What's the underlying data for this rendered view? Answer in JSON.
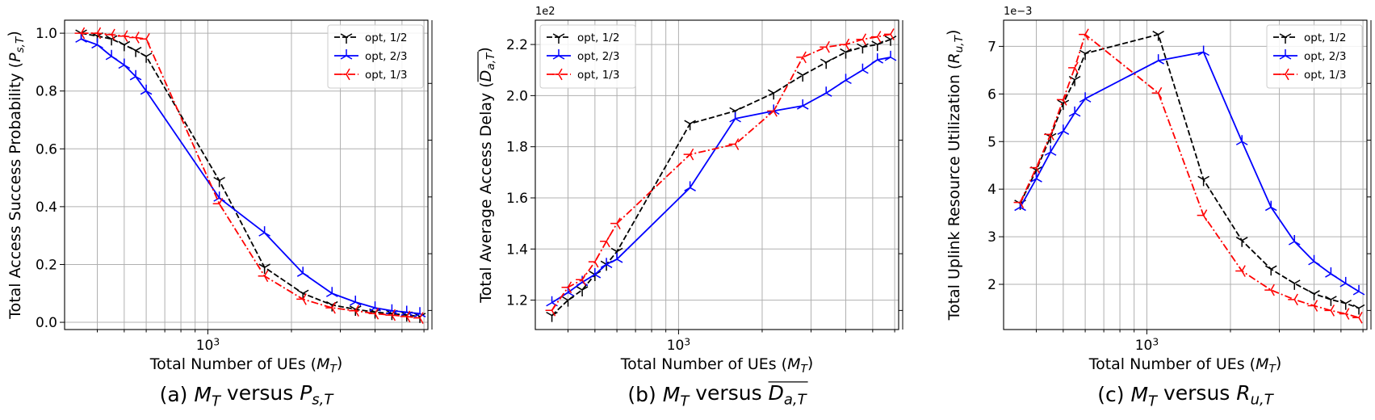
{
  "chart_data": [
    {
      "type": "line",
      "xlabel": "Total Number of UEs (M_T)",
      "ylabel": "Total Access Success Probability (P_{s,T})",
      "caption": "(a) M_T versus P_{s,T}",
      "offset_label": "",
      "xscale": "log",
      "xlim": [
        305,
        6200
      ],
      "xticks": [
        1000
      ],
      "xtick_labels": [
        "10^3"
      ],
      "ylim": [
        -0.025,
        1.045
      ],
      "yticks": [
        0.0,
        0.2,
        0.4,
        0.6,
        0.8,
        1.0
      ],
      "ytick_labels": [
        "0.0",
        "0.2",
        "0.4",
        "0.6",
        "0.8",
        "1.0"
      ],
      "grid": true,
      "legend_position": "upper right",
      "series": [
        {
          "name": "opt, 1/2",
          "color": "#000000",
          "dash": "dashed",
          "marker": "tri-down",
          "x": [
            350,
            400,
            450,
            500,
            550,
            600,
            1100,
            1600,
            2200,
            2800,
            3400,
            4000,
            4600,
            5200,
            5800
          ],
          "y": [
            1.0,
            0.99,
            0.98,
            0.96,
            0.94,
            0.92,
            0.49,
            0.19,
            0.1,
            0.06,
            0.045,
            0.035,
            0.03,
            0.025,
            0.02
          ]
        },
        {
          "name": "opt, 2/3",
          "color": "#0000ff",
          "dash": "solid",
          "marker": "tri-up",
          "x": [
            350,
            400,
            450,
            500,
            550,
            600,
            1100,
            1600,
            2200,
            2800,
            3400,
            4000,
            4600,
            5200,
            5800
          ],
          "y": [
            0.98,
            0.96,
            0.92,
            0.89,
            0.85,
            0.8,
            0.43,
            0.31,
            0.17,
            0.1,
            0.07,
            0.05,
            0.04,
            0.035,
            0.03
          ]
        },
        {
          "name": "opt, 1/3",
          "color": "#ff0000",
          "dash": "dashdot",
          "marker": "tri-left",
          "x": [
            350,
            400,
            450,
            500,
            550,
            600,
            1100,
            1600,
            2200,
            2800,
            3400,
            4000,
            4600,
            5200,
            5800
          ],
          "y": [
            1.0,
            1.0,
            0.995,
            0.99,
            0.985,
            0.98,
            0.41,
            0.16,
            0.08,
            0.05,
            0.04,
            0.03,
            0.025,
            0.02,
            0.015
          ]
        }
      ]
    },
    {
      "type": "line",
      "xlabel": "Total Number of UEs (M_T)",
      "ylabel": "Total Average Access Delay (D_{a,T})",
      "caption": "(b) M_T versus D_{a,T}",
      "offset_label": "1e2",
      "xscale": "log",
      "xlim": [
        305,
        6200
      ],
      "xticks": [
        1000
      ],
      "xtick_labels": [
        "10^3"
      ],
      "ylim": [
        1.085,
        2.295
      ],
      "yticks": [
        1.2,
        1.4,
        1.6,
        1.8,
        2.0,
        2.2
      ],
      "ytick_labels": [
        "1.2",
        "1.4",
        "1.6",
        "1.8",
        "2.0",
        "2.2"
      ],
      "grid": true,
      "legend_position": "upper left",
      "series": [
        {
          "name": "opt, 1/2",
          "color": "#000000",
          "dash": "dashed",
          "marker": "tri-down",
          "x": [
            350,
            400,
            450,
            500,
            550,
            600,
            1100,
            1600,
            2200,
            2800,
            3400,
            4000,
            4600,
            5200,
            5800
          ],
          "y": [
            1.14,
            1.2,
            1.24,
            1.3,
            1.34,
            1.39,
            1.89,
            1.94,
            2.01,
            2.08,
            2.13,
            2.17,
            2.19,
            2.2,
            2.22
          ]
        },
        {
          "name": "opt, 2/3",
          "color": "#0000ff",
          "dash": "solid",
          "marker": "tri-up",
          "x": [
            350,
            400,
            450,
            500,
            550,
            600,
            1100,
            1600,
            2200,
            2800,
            3400,
            4000,
            4600,
            5200,
            5800
          ],
          "y": [
            1.19,
            1.23,
            1.27,
            1.3,
            1.34,
            1.36,
            1.64,
            1.91,
            1.94,
            1.96,
            2.01,
            2.06,
            2.1,
            2.14,
            2.15
          ]
        },
        {
          "name": "opt, 1/3",
          "color": "#ff0000",
          "dash": "dashdot",
          "marker": "tri-left",
          "x": [
            350,
            400,
            450,
            500,
            550,
            600,
            1100,
            1600,
            2200,
            2800,
            3400,
            4000,
            4600,
            5200,
            5800
          ],
          "y": [
            1.16,
            1.25,
            1.28,
            1.35,
            1.43,
            1.5,
            1.77,
            1.81,
            1.94,
            2.15,
            2.19,
            2.2,
            2.22,
            2.23,
            2.24
          ]
        }
      ]
    },
    {
      "type": "line",
      "xlabel": "Total Number of UEs (M_T)",
      "ylabel": "Total Uplink Resource Utilization (R_{u,T})",
      "caption": "(c) M_T versus R_{u,T}",
      "offset_label": "1e−3",
      "xscale": "log",
      "xlim": [
        305,
        6200
      ],
      "xticks": [
        1000
      ],
      "xtick_labels": [
        "10^3"
      ],
      "ylim": [
        1.05,
        7.55
      ],
      "yticks": [
        2,
        3,
        4,
        5,
        6,
        7
      ],
      "ytick_labels": [
        "2",
        "3",
        "4",
        "5",
        "6",
        "7"
      ],
      "grid": true,
      "legend_position": "upper right",
      "series": [
        {
          "name": "opt, 1/2",
          "color": "#000000",
          "dash": "dashed",
          "marker": "tri-down",
          "x": [
            350,
            400,
            450,
            500,
            550,
            600,
            1100,
            1600,
            2200,
            2800,
            3400,
            4000,
            4600,
            5200,
            5800
          ],
          "y": [
            3.7,
            4.4,
            5.1,
            5.8,
            6.3,
            6.85,
            7.25,
            4.2,
            2.92,
            2.32,
            2.02,
            1.8,
            1.68,
            1.6,
            1.5
          ]
        },
        {
          "name": "opt, 2/3",
          "color": "#0000ff",
          "dash": "solid",
          "marker": "tri-up",
          "x": [
            350,
            400,
            450,
            500,
            550,
            600,
            1100,
            1600,
            2200,
            2800,
            3400,
            4000,
            4600,
            5200,
            5800
          ],
          "y": [
            3.62,
            4.22,
            4.78,
            5.22,
            5.6,
            5.9,
            6.7,
            6.88,
            5.0,
            3.62,
            2.9,
            2.48,
            2.22,
            2.02,
            1.85
          ]
        },
        {
          "name": "opt, 1/3",
          "color": "#ff0000",
          "dash": "dashdot",
          "marker": "tri-left",
          "x": [
            350,
            400,
            450,
            500,
            550,
            600,
            1100,
            1600,
            2200,
            2800,
            3400,
            4000,
            4600,
            5200,
            5800
          ],
          "y": [
            3.72,
            4.45,
            5.15,
            5.88,
            6.55,
            7.25,
            6.02,
            3.45,
            2.28,
            1.88,
            1.68,
            1.55,
            1.45,
            1.38,
            1.3
          ]
        }
      ]
    }
  ]
}
